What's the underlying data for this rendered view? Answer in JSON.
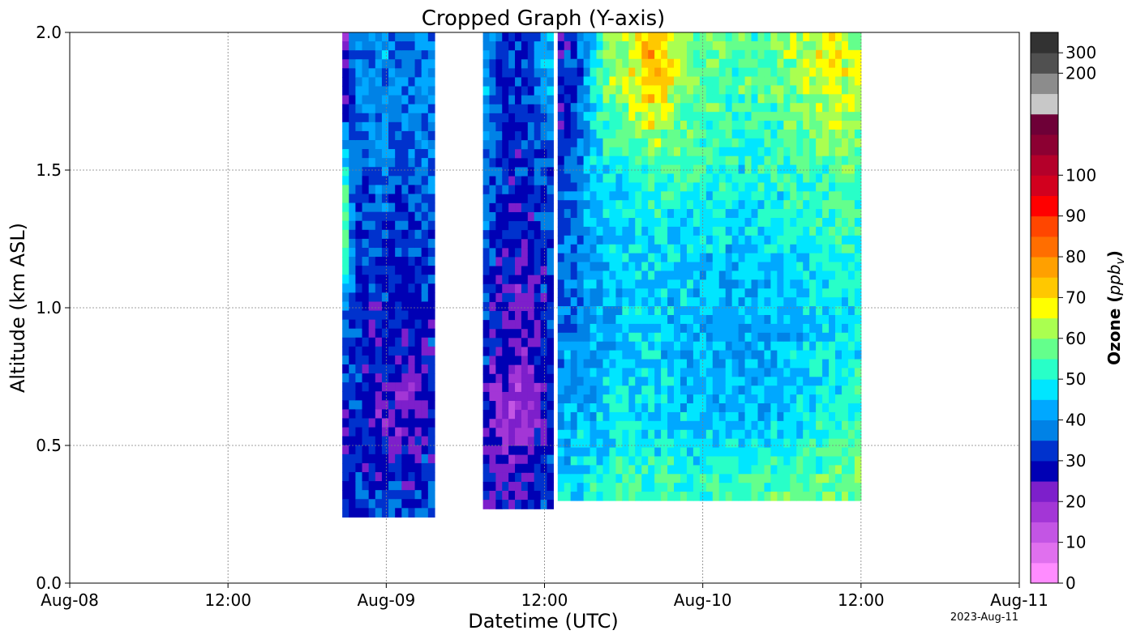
{
  "chart_data": {
    "type": "heatmap",
    "title": "Cropped Graph (Y-axis)",
    "xlabel": "Datetime (UTC)",
    "ylabel": "Altitude (km ASL)",
    "x_range": [
      "2023-08-08T00:00",
      "2023-08-11T00:00"
    ],
    "x_ticks": [
      {
        "label": "Aug-08",
        "time": "2023-08-08T00:00"
      },
      {
        "label": "12:00",
        "time": "2023-08-08T12:00"
      },
      {
        "label": "Aug-09",
        "time": "2023-08-09T00:00"
      },
      {
        "label": "12:00",
        "time": "2023-08-09T12:00"
      },
      {
        "label": "Aug-10",
        "time": "2023-08-10T00:00"
      },
      {
        "label": "12:00",
        "time": "2023-08-10T12:00"
      },
      {
        "label": "Aug-11",
        "time": "2023-08-11T00:00"
      }
    ],
    "ylim": [
      0,
      2
    ],
    "y_ticks": [
      {
        "label": "0.0",
        "value": 0.0
      },
      {
        "label": "0.5",
        "value": 0.5
      },
      {
        "label": "1.0",
        "value": 1.0
      },
      {
        "label": "1.5",
        "value": 1.5
      },
      {
        "label": "2.0",
        "value": 2.0
      }
    ],
    "grid": true,
    "date_stamp": "2023-Aug-11",
    "colorbar": {
      "label_main": "Ozone (",
      "label_unit": "ppb",
      "label_sub": "v",
      "label_end": ")",
      "boundaries": [
        0,
        5,
        10,
        15,
        20,
        25,
        30,
        35,
        40,
        45,
        50,
        55,
        60,
        65,
        70,
        75,
        80,
        85,
        90,
        95,
        100,
        105,
        110,
        120,
        150,
        200,
        300,
        400
      ],
      "colors": [
        "#ff8cff",
        "#e070ee",
        "#c355e4",
        "#a336d6",
        "#7d1fcb",
        "#0000b4",
        "#0032cd",
        "#0082e6",
        "#00a8ff",
        "#00e6ff",
        "#28ffc8",
        "#64ff8c",
        "#aaff50",
        "#ffff00",
        "#ffc800",
        "#ffa000",
        "#ff6e00",
        "#ff4600",
        "#ff0000",
        "#d2001e",
        "#b4002a",
        "#8c0032",
        "#6e0037",
        "#c8c8c8",
        "#8c8c8c",
        "#505050",
        "#323232"
      ],
      "tick_labels": [
        {
          "label": "0",
          "value": 0
        },
        {
          "label": "10",
          "value": 10
        },
        {
          "label": "20",
          "value": 20
        },
        {
          "label": "30",
          "value": 30
        },
        {
          "label": "40",
          "value": 40
        },
        {
          "label": "50",
          "value": 50
        },
        {
          "label": "60",
          "value": 60
        },
        {
          "label": "70",
          "value": 70
        },
        {
          "label": "80",
          "value": 80
        },
        {
          "label": "90",
          "value": 90
        },
        {
          "label": "100",
          "value": 100
        },
        {
          "label": "200",
          "value": 200
        },
        {
          "label": "300",
          "value": 300
        }
      ]
    },
    "segments": [
      {
        "start": "2023-08-08T20:40",
        "end": "2023-08-09T03:40",
        "bottom_km": 0.24,
        "top_km": 2.0,
        "profiles_km": [
          0.3,
          0.6,
          0.9,
          1.2,
          1.5,
          1.8
        ],
        "ozone_ppbv": [
          [
            30,
            28,
            34,
            62,
            58,
            22
          ],
          [
            30,
            33,
            32,
            31,
            34,
            36
          ],
          [
            31,
            24,
            27,
            33,
            35,
            38
          ],
          [
            32,
            25,
            30,
            32,
            37,
            40
          ],
          [
            33,
            23,
            29,
            31,
            36,
            39
          ],
          [
            30,
            22,
            26,
            30,
            34,
            38
          ],
          [
            34,
            24,
            28,
            32,
            36,
            39
          ],
          [
            36,
            26,
            30,
            33,
            37,
            40
          ]
        ]
      },
      {
        "start": "2023-08-09T07:20",
        "end": "2023-08-09T12:40",
        "bottom_km": 0.27,
        "top_km": 2.0,
        "profiles_km": [
          0.3,
          0.6,
          0.9,
          1.2,
          1.5,
          1.8
        ],
        "ozone_ppbv": [
          [
            28,
            26,
            33,
            36,
            38,
            45
          ],
          [
            27,
            21,
            27,
            31,
            33,
            34
          ],
          [
            29,
            19,
            25,
            29,
            31,
            31
          ],
          [
            28,
            18,
            22,
            27,
            30,
            31
          ],
          [
            30,
            20,
            24,
            28,
            31,
            32
          ],
          [
            32,
            25,
            28,
            30,
            32,
            40
          ],
          [
            34,
            30,
            32,
            33,
            35,
            42
          ]
        ]
      },
      {
        "start": "2023-08-09T13:00",
        "end": "2023-08-10T12:00",
        "bottom_km": 0.3,
        "top_km": 2.0,
        "profiles_km": [
          0.3,
          0.6,
          0.9,
          1.2,
          1.5,
          1.8
        ],
        "ozone_ppbv": [
          [
            46,
            40,
            38,
            35,
            30,
            26
          ],
          [
            50,
            45,
            41,
            39,
            40,
            35
          ],
          [
            52,
            46,
            43,
            44,
            48,
            58
          ],
          [
            54,
            47,
            45,
            47,
            52,
            62
          ],
          [
            55,
            47,
            46,
            48,
            54,
            76
          ],
          [
            54,
            46,
            44,
            47,
            53,
            64
          ],
          [
            53,
            45,
            43,
            46,
            52,
            58
          ],
          [
            54,
            44,
            42,
            45,
            51,
            56
          ],
          [
            56,
            43,
            41,
            45,
            50,
            55
          ],
          [
            57,
            44,
            42,
            46,
            51,
            56
          ],
          [
            58,
            46,
            44,
            48,
            53,
            60
          ],
          [
            59,
            49,
            46,
            50,
            55,
            64
          ],
          [
            60,
            51,
            48,
            51,
            55,
            66
          ],
          [
            58,
            52,
            49,
            52,
            56,
            62
          ]
        ]
      }
    ]
  }
}
